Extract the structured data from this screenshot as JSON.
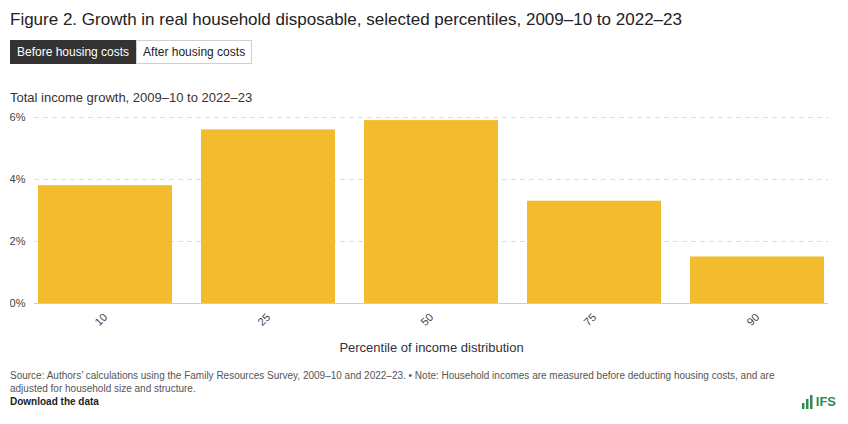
{
  "chart_data": {
    "type": "bar",
    "title": "Figure 2. Growth in real household disposable, selected percentiles, 2009–10 to 2022–23",
    "buttons": [
      "Before housing costs",
      "After housing costs"
    ],
    "subtitle": "Total income growth, 2009–10 to 2022–23",
    "x_label": "Percentile of income distribution",
    "categories": [
      "10",
      "25",
      "50",
      "75",
      "90"
    ],
    "values": [
      3.8,
      5.6,
      5.9,
      3.3,
      1.5
    ],
    "color": "#f2bc2e",
    "ylim": [
      0,
      6
    ],
    "yticks": [
      {
        "value": 0,
        "label": "0%"
      },
      {
        "value": 2,
        "label": "2%"
      },
      {
        "value": 4,
        "label": "4%"
      },
      {
        "value": 6,
        "label": "6%"
      }
    ],
    "grid": true,
    "caption": "Source: Authors’ calculations using the Family Resources Survey, 2009–10 and 2022–23. • Note: Household incomes are measured before deducting housing costs, and are adjusted for household size and structure.",
    "link": "Download the data",
    "logo": "IFS"
  }
}
